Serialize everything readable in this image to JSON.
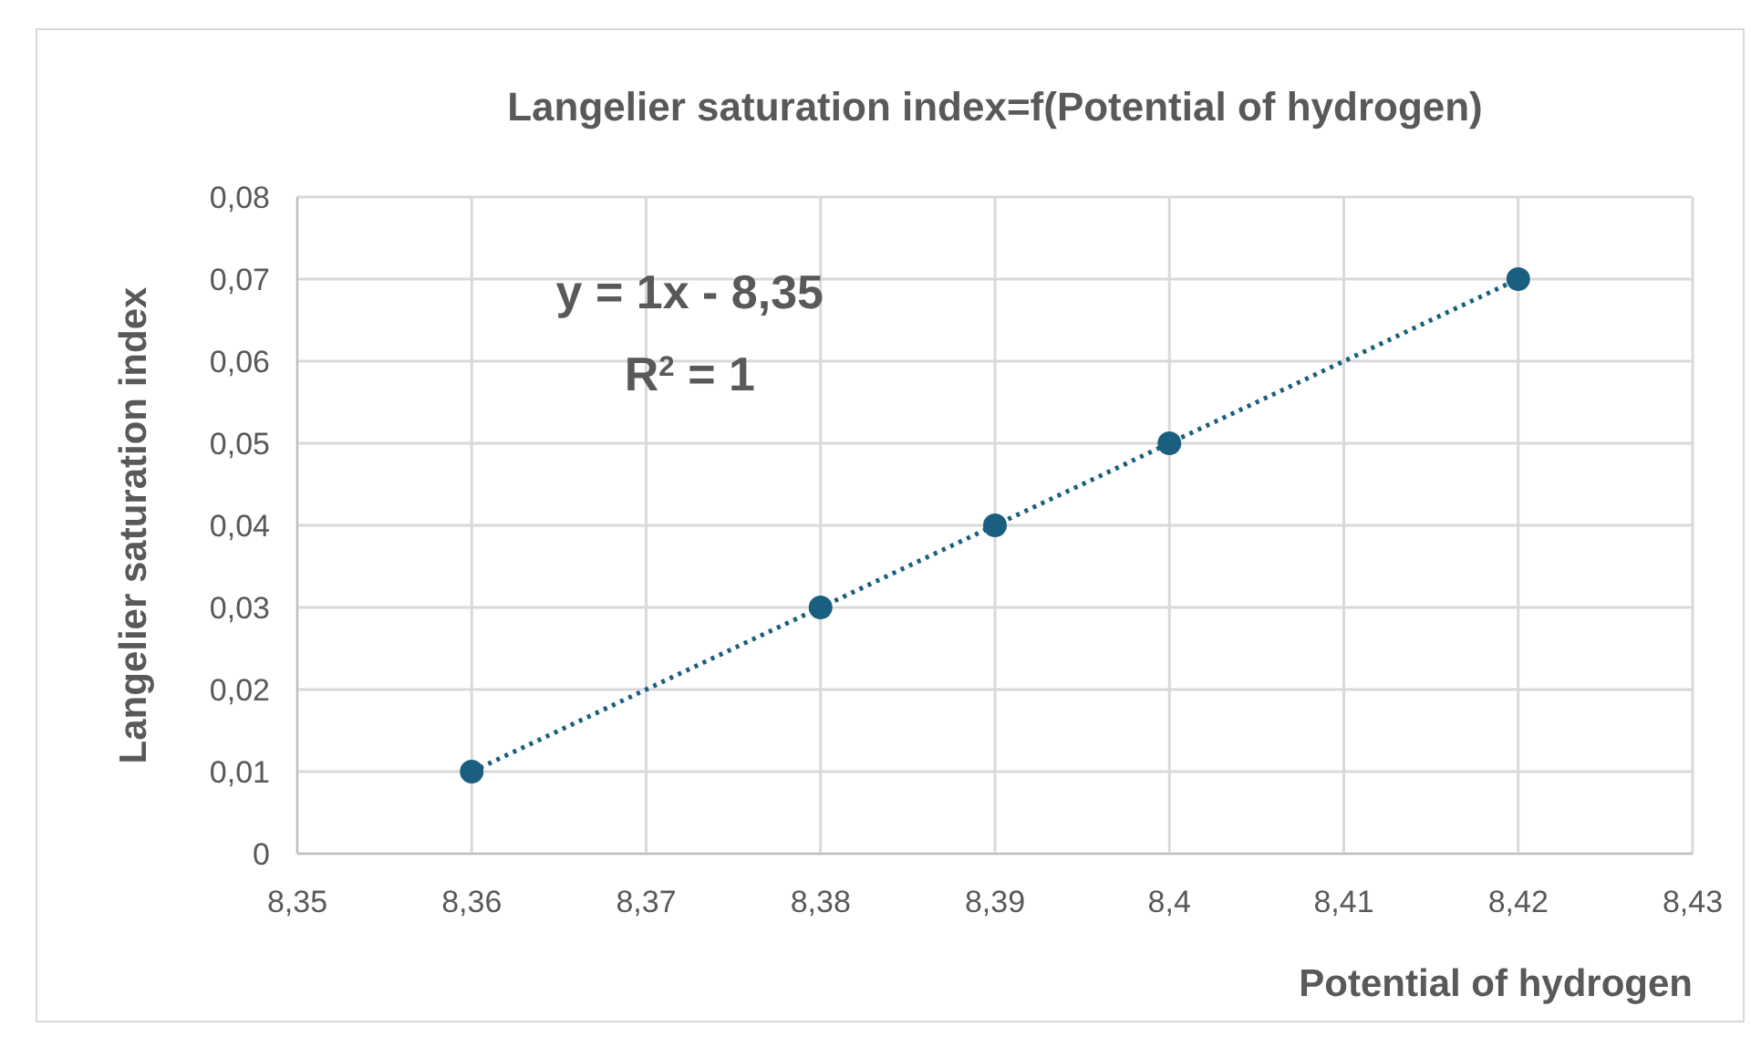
{
  "chart_data": {
    "type": "scatter",
    "title": "Langelier saturation  index=f(Potential of hydrogen)",
    "xlabel": "Potential of hydrogen",
    "ylabel": "Langelier saturation index",
    "x": [
      8.36,
      8.38,
      8.39,
      8.4,
      8.42
    ],
    "series": [
      {
        "color": "#1a5f80",
        "values": [
          0.01,
          0.03,
          0.04,
          0.05,
          0.07
        ],
        "marker": "circle"
      },
      {
        "type": "line",
        "color": "#1a5f80",
        "x": [
          8.36,
          8.42
        ],
        "values": [
          0.01,
          0.07
        ],
        "line_style": "dotted",
        "marker": "none"
      }
    ],
    "annotations": [
      "y = 1x - 8,35",
      "R$^{2}$ = 1"
    ],
    "xlim": [
      8.35,
      8.43
    ],
    "xticks": [
      {
        "value": 8.35,
        "label": "8,35"
      },
      {
        "value": 8.36,
        "label": "8,36"
      },
      {
        "value": 8.37,
        "label": "8,37"
      },
      {
        "value": 8.38,
        "label": "8,38"
      },
      {
        "value": 8.39,
        "label": "8,39"
      },
      {
        "value": 8.4,
        "label": "8,4"
      },
      {
        "value": 8.41,
        "label": "8,41"
      },
      {
        "value": 8.42,
        "label": "8,42"
      },
      {
        "value": 8.43,
        "label": "8,43"
      }
    ],
    "ylim": [
      0,
      0.08
    ],
    "yticks": [
      0,
      {
        "value": 0.01,
        "label": "0,01"
      },
      {
        "value": 0.02,
        "label": "0,02"
      },
      {
        "value": 0.03,
        "label": "0,03"
      },
      {
        "value": 0.04,
        "label": "0,04"
      },
      {
        "value": 0.05,
        "label": "0,05"
      },
      {
        "value": 0.06,
        "label": "0,06"
      },
      {
        "value": 0.07,
        "label": "0,07"
      },
      {
        "value": 0.08,
        "label": "0,08"
      }
    ],
    "grid": true
  }
}
